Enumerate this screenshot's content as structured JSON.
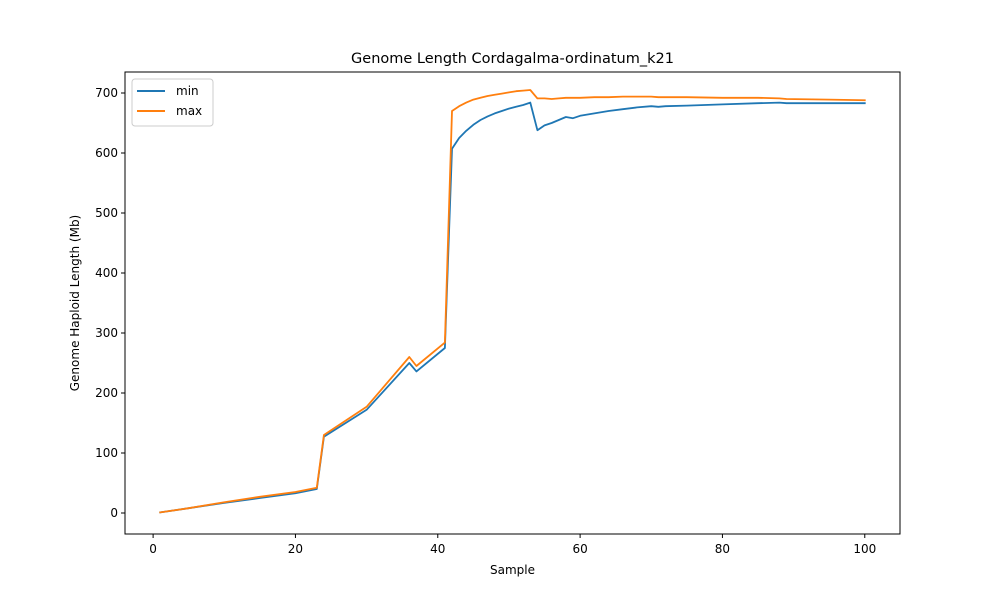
{
  "chart_data": {
    "type": "line",
    "title": "Genome Length Cordagalma-ordinatum_k21",
    "xlabel": "Sample",
    "ylabel": "Genome Haploid Length (Mb)",
    "xlim": [
      -3.95,
      104.95
    ],
    "ylim": [
      -35,
      735
    ],
    "xticks": [
      0,
      20,
      40,
      60,
      80,
      100
    ],
    "yticks": [
      0,
      100,
      200,
      300,
      400,
      500,
      600,
      700
    ],
    "grid": false,
    "legend_position": "top-left",
    "series": [
      {
        "name": "min",
        "color": "#1f77b4",
        "points": [
          [
            1,
            1
          ],
          [
            5,
            8
          ],
          [
            10,
            17
          ],
          [
            15,
            25
          ],
          [
            20,
            33
          ],
          [
            23,
            40
          ],
          [
            24,
            127
          ],
          [
            30,
            172
          ],
          [
            36,
            250
          ],
          [
            37,
            236
          ],
          [
            41,
            275
          ],
          [
            42,
            607
          ],
          [
            43,
            625
          ],
          [
            44,
            637
          ],
          [
            45,
            647
          ],
          [
            46,
            655
          ],
          [
            47,
            661
          ],
          [
            48,
            666
          ],
          [
            49,
            670
          ],
          [
            50,
            674
          ],
          [
            51,
            677
          ],
          [
            52,
            680
          ],
          [
            53,
            684
          ],
          [
            54,
            638
          ],
          [
            55,
            646
          ],
          [
            56,
            650
          ],
          [
            57,
            655
          ],
          [
            58,
            660
          ],
          [
            59,
            658
          ],
          [
            60,
            662
          ],
          [
            62,
            666
          ],
          [
            64,
            670
          ],
          [
            66,
            673
          ],
          [
            68,
            676
          ],
          [
            70,
            678
          ],
          [
            71,
            677
          ],
          [
            72,
            678
          ],
          [
            75,
            679
          ],
          [
            80,
            681
          ],
          [
            85,
            683
          ],
          [
            88,
            684
          ],
          [
            89,
            683
          ],
          [
            95,
            683
          ],
          [
            100,
            683
          ]
        ]
      },
      {
        "name": "max",
        "color": "#ff7f0e",
        "points": [
          [
            1,
            1
          ],
          [
            5,
            8
          ],
          [
            10,
            18
          ],
          [
            15,
            27
          ],
          [
            20,
            35
          ],
          [
            23,
            42
          ],
          [
            24,
            130
          ],
          [
            30,
            177
          ],
          [
            36,
            260
          ],
          [
            37,
            245
          ],
          [
            41,
            284
          ],
          [
            42,
            670
          ],
          [
            43,
            678
          ],
          [
            44,
            684
          ],
          [
            45,
            689
          ],
          [
            46,
            692
          ],
          [
            47,
            695
          ],
          [
            48,
            697
          ],
          [
            49,
            699
          ],
          [
            50,
            701
          ],
          [
            51,
            703
          ],
          [
            52,
            704
          ],
          [
            53,
            705
          ],
          [
            54,
            691
          ],
          [
            55,
            691
          ],
          [
            56,
            690
          ],
          [
            57,
            691
          ],
          [
            58,
            692
          ],
          [
            60,
            692
          ],
          [
            62,
            693
          ],
          [
            64,
            693
          ],
          [
            66,
            694
          ],
          [
            68,
            694
          ],
          [
            70,
            694
          ],
          [
            71,
            693
          ],
          [
            75,
            693
          ],
          [
            80,
            692
          ],
          [
            85,
            692
          ],
          [
            88,
            691
          ],
          [
            89,
            690
          ],
          [
            95,
            689
          ],
          [
            100,
            688
          ]
        ]
      }
    ]
  }
}
